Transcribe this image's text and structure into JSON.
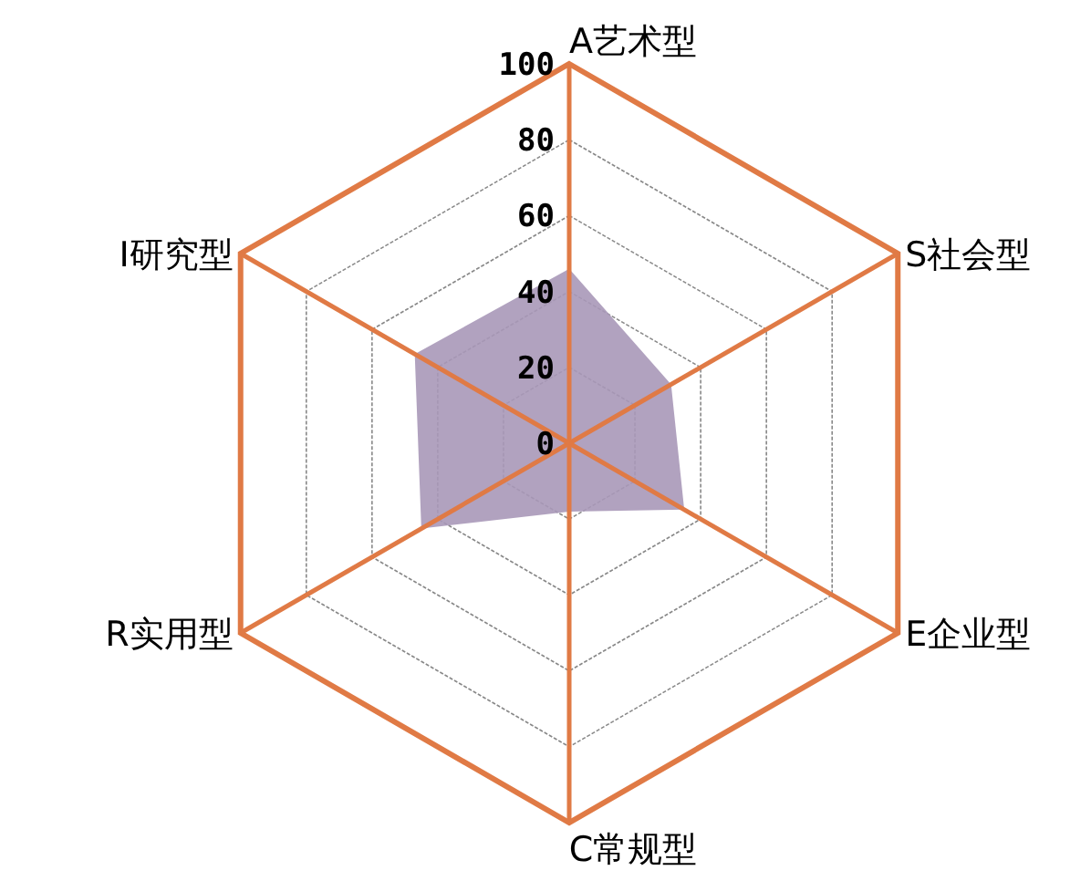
{
  "chart_data": {
    "type": "radar",
    "categories": [
      "A艺术型",
      "S社会型",
      "E企业型",
      "C常规型",
      "R实用型",
      "I研究型"
    ],
    "series": [
      {
        "color": "#a898b8",
        "values": [
          46,
          31,
          35,
          18,
          45,
          47
        ]
      }
    ],
    "ylim": [
      0,
      100
    ],
    "yticks": [
      0,
      20,
      40,
      60,
      80,
      100
    ],
    "grid": true
  }
}
